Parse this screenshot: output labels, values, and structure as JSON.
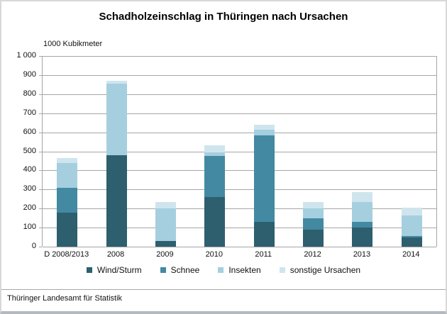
{
  "title": "Schadholzeinschlag in Thüringen nach Ursachen",
  "unit_label": "1000 Kubikmeter",
  "source": "Thüringer Landesamt für Statistik",
  "chart_data": {
    "type": "bar",
    "stacked": true,
    "title": "Schadholzeinschlag in Thüringen nach Ursachen",
    "xlabel": "",
    "ylabel": "1000 Kubikmeter",
    "ylim": [
      0,
      1000
    ],
    "ytick_step": 100,
    "ytick_labels": [
      "0",
      "100",
      "200",
      "300",
      "400",
      "500",
      "600",
      "700",
      "800",
      "900",
      "1 000"
    ],
    "grid": true,
    "legend_position": "bottom",
    "categories": [
      "D 2008/2013",
      "2008",
      "2009",
      "2010",
      "2011",
      "2012",
      "2013",
      "2014"
    ],
    "series": [
      {
        "name": "Wind/Sturm",
        "color": "#2d5f6f",
        "values": [
          180,
          480,
          30,
          260,
          130,
          90,
          100,
          50
        ]
      },
      {
        "name": "Schnee",
        "color": "#4389a2",
        "values": [
          130,
          0,
          0,
          215,
          455,
          60,
          30,
          5
        ]
      },
      {
        "name": "Insekten",
        "color": "#a5cfdf",
        "values": [
          130,
          375,
          170,
          20,
          30,
          50,
          105,
          110
        ]
      },
      {
        "name": "sonstige Ursachen",
        "color": "#cfe5ed",
        "values": [
          25,
          15,
          35,
          35,
          25,
          35,
          50,
          40
        ]
      }
    ],
    "totals": [
      465,
      870,
      235,
      530,
      640,
      235,
      285,
      205
    ]
  },
  "layout_colors": {
    "grid": "#a6a6a6",
    "frame_border": "#d8d8d8",
    "frame_bottom": "#b4bac1"
  }
}
